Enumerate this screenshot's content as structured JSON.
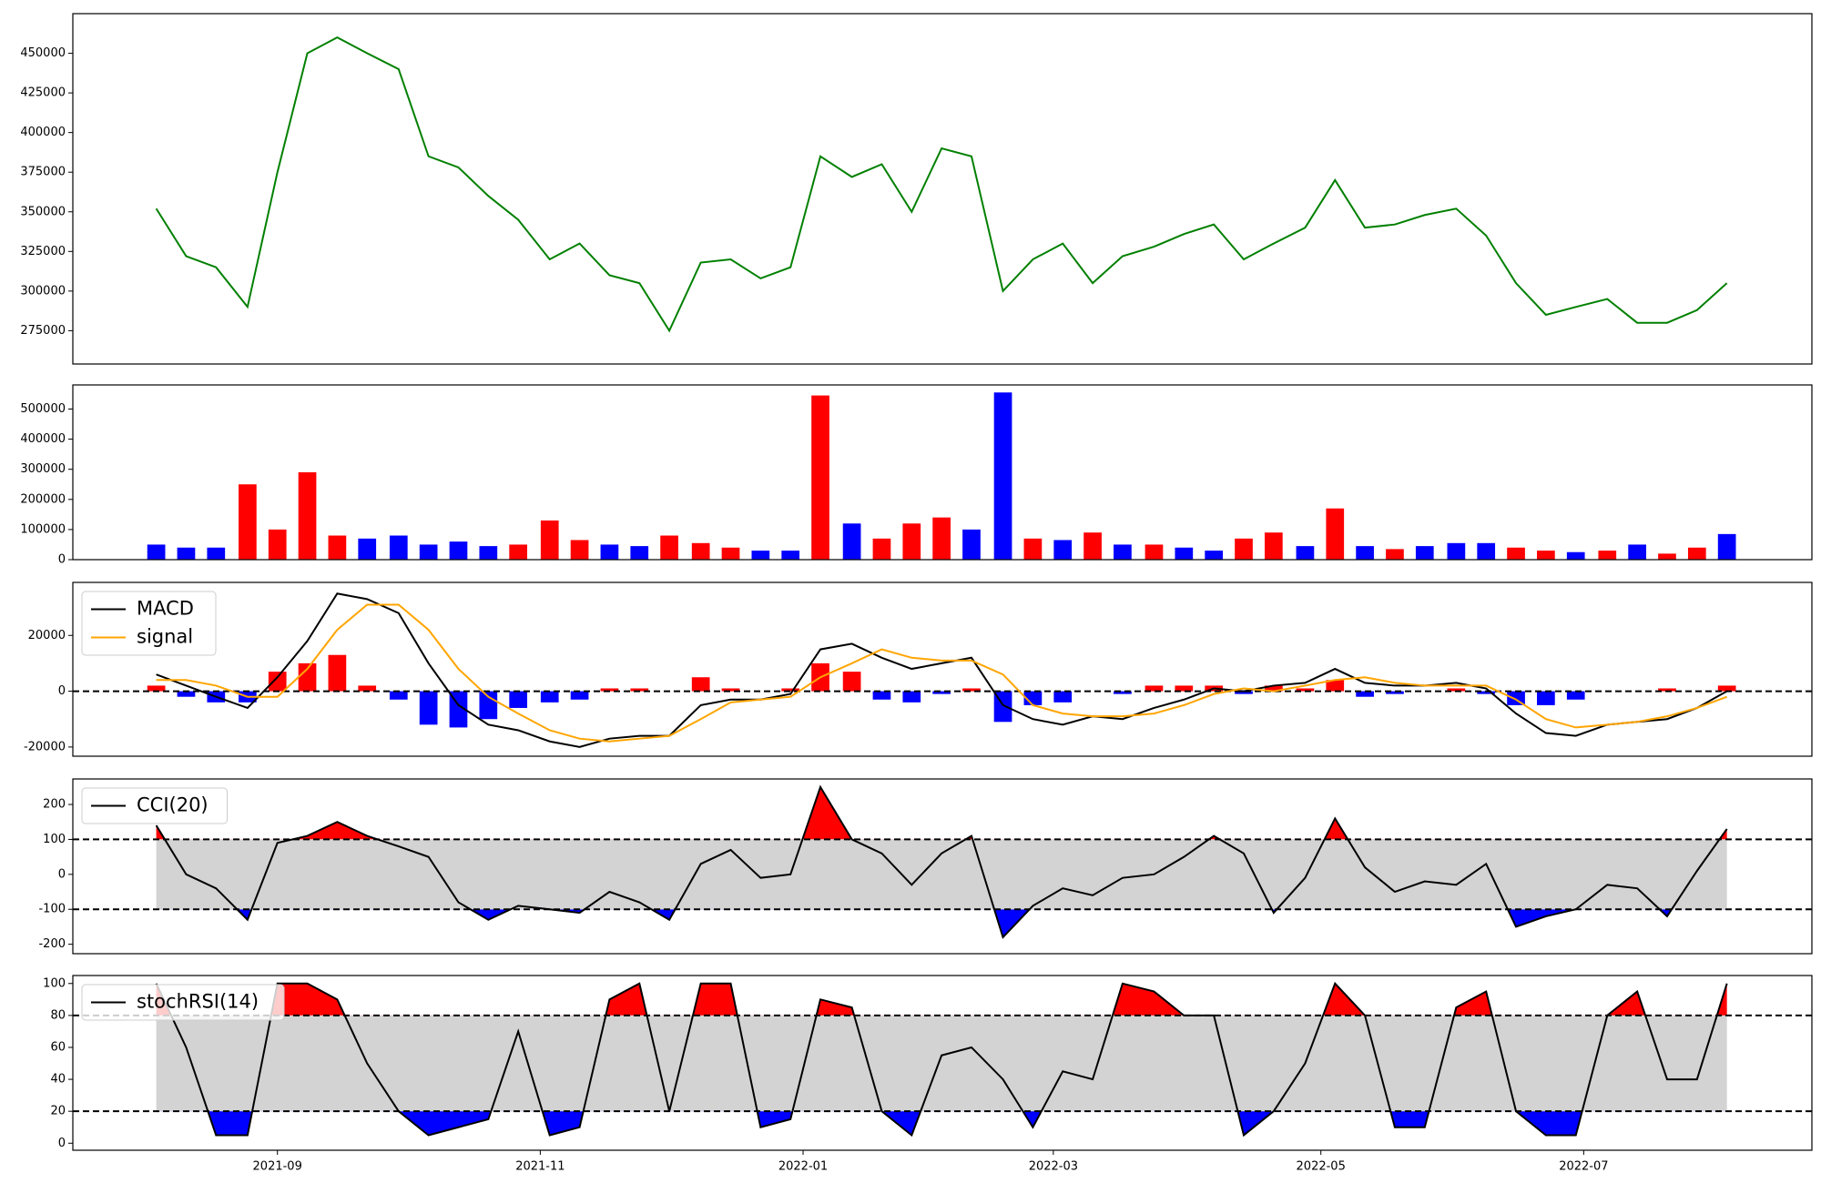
{
  "chart_data": [
    {
      "type": "line",
      "x": [
        2021.589,
        2021.608,
        2021.627,
        2021.647,
        2021.666,
        2021.685,
        2021.704,
        2021.723,
        2021.743,
        2021.762,
        2021.781,
        2021.8,
        2021.819,
        2021.839,
        2021.858,
        2021.877,
        2021.896,
        2021.915,
        2021.935,
        2021.954,
        2021.973,
        2021.992,
        2022.011,
        2022.031,
        2022.05,
        2022.069,
        2022.088,
        2022.107,
        2022.127,
        2022.146,
        2022.165,
        2022.184,
        2022.203,
        2022.223,
        2022.242,
        2022.261,
        2022.28,
        2022.299,
        2022.319,
        2022.338,
        2022.357,
        2022.376,
        2022.395,
        2022.415,
        2022.434,
        2022.453,
        2022.472,
        2022.491,
        2022.511,
        2022.53,
        2022.549,
        2022.568,
        2022.587
      ],
      "series": [
        {
          "color": "#008000",
          "values": [
            352000,
            322000,
            315000,
            290000,
            375000,
            450000,
            460000,
            450000,
            440000,
            385000,
            378000,
            360000,
            345000,
            320000,
            330000,
            310000,
            305000,
            275000,
            318000,
            320000,
            308000,
            315000,
            385000,
            372000,
            380000,
            350000,
            390000,
            385000,
            300000,
            320000,
            330000,
            305000,
            322000,
            328000,
            336000,
            342000,
            320000,
            330000,
            340000,
            370000,
            340000,
            342000,
            348000,
            352000,
            335000,
            305000,
            285000,
            290000,
            295000,
            280000,
            280000,
            288000,
            305000
          ]
        }
      ],
      "xlim": [
        2021.536,
        2022.641
      ],
      "ylim": [
        254000,
        475000
      ],
      "yticks": [
        275000,
        300000,
        325000,
        350000,
        375000,
        400000,
        425000,
        450000
      ]
    },
    {
      "type": "bar",
      "x": [
        2021.589,
        2021.608,
        2021.627,
        2021.647,
        2021.666,
        2021.685,
        2021.704,
        2021.723,
        2021.743,
        2021.762,
        2021.781,
        2021.8,
        2021.819,
        2021.839,
        2021.858,
        2021.877,
        2021.896,
        2021.915,
        2021.935,
        2021.954,
        2021.973,
        2021.992,
        2022.011,
        2022.031,
        2022.05,
        2022.069,
        2022.088,
        2022.107,
        2022.127,
        2022.146,
        2022.165,
        2022.184,
        2022.203,
        2022.223,
        2022.242,
        2022.261,
        2022.28,
        2022.299,
        2022.319,
        2022.338,
        2022.357,
        2022.376,
        2022.395,
        2022.415,
        2022.434,
        2022.453,
        2022.472,
        2022.491,
        2022.511,
        2022.53,
        2022.549,
        2022.568,
        2022.587
      ],
      "values": [
        50000,
        40000,
        40000,
        250000,
        100000,
        290000,
        80000,
        70000,
        80000,
        50000,
        60000,
        45000,
        50000,
        130000,
        65000,
        50000,
        45000,
        80000,
        55000,
        40000,
        30000,
        30000,
        545000,
        120000,
        70000,
        120000,
        140000,
        100000,
        555000,
        70000,
        65000,
        90000,
        50000,
        50000,
        40000,
        30000,
        70000,
        90000,
        45000,
        170000,
        45000,
        35000,
        45000,
        55000,
        55000,
        40000,
        30000,
        25000,
        30000,
        50000,
        20000,
        40000,
        85000
      ],
      "colors": [
        "blue",
        "blue",
        "blue",
        "red",
        "red",
        "red",
        "red",
        "blue",
        "blue",
        "blue",
        "blue",
        "blue",
        "red",
        "red",
        "red",
        "blue",
        "blue",
        "red",
        "red",
        "red",
        "blue",
        "blue",
        "red",
        "blue",
        "red",
        "red",
        "red",
        "blue",
        "blue",
        "red",
        "blue",
        "red",
        "blue",
        "red",
        "blue",
        "blue",
        "red",
        "red",
        "blue",
        "red",
        "blue",
        "red",
        "blue",
        "blue",
        "blue",
        "red",
        "red",
        "blue",
        "red",
        "blue",
        "red",
        "red",
        "blue"
      ],
      "xlim": [
        2021.536,
        2022.641
      ],
      "ylim": [
        0,
        580000
      ],
      "yticks": [
        0,
        100000,
        200000,
        300000,
        400000,
        500000
      ]
    },
    {
      "type": "line",
      "x": [
        2021.589,
        2021.608,
        2021.627,
        2021.647,
        2021.666,
        2021.685,
        2021.704,
        2021.723,
        2021.743,
        2021.762,
        2021.781,
        2021.8,
        2021.819,
        2021.839,
        2021.858,
        2021.877,
        2021.896,
        2021.915,
        2021.935,
        2021.954,
        2021.973,
        2021.992,
        2022.011,
        2022.031,
        2022.05,
        2022.069,
        2022.088,
        2022.107,
        2022.127,
        2022.146,
        2022.165,
        2022.184,
        2022.203,
        2022.223,
        2022.242,
        2022.261,
        2022.28,
        2022.299,
        2022.319,
        2022.338,
        2022.357,
        2022.376,
        2022.395,
        2022.415,
        2022.434,
        2022.453,
        2022.472,
        2022.491,
        2022.511,
        2022.53,
        2022.549,
        2022.568,
        2022.587
      ],
      "series": [
        {
          "name": "MACD",
          "color": "#000000",
          "values": [
            6000,
            2000,
            -2000,
            -6000,
            5000,
            18000,
            35000,
            33000,
            28000,
            10000,
            -5000,
            -12000,
            -14000,
            -18000,
            -20000,
            -17000,
            -16000,
            -16000,
            -5000,
            -3000,
            -3000,
            -1000,
            15000,
            17000,
            12000,
            8000,
            10000,
            12000,
            -5000,
            -10000,
            -12000,
            -9000,
            -10000,
            -6000,
            -3000,
            1000,
            0,
            2000,
            3000,
            8000,
            3000,
            2000,
            2000,
            3000,
            1000,
            -8000,
            -15000,
            -16000,
            -12000,
            -11000,
            -10000,
            -6000,
            0
          ]
        },
        {
          "name": "signal",
          "color": "#ffa500",
          "values": [
            4000,
            4000,
            2000,
            -2000,
            -2000,
            8000,
            22000,
            31000,
            31000,
            22000,
            8000,
            -2000,
            -8000,
            -14000,
            -17000,
            -18000,
            -17000,
            -16000,
            -10000,
            -4000,
            -3000,
            -2000,
            5000,
            10000,
            15000,
            12000,
            11000,
            11000,
            6000,
            -5000,
            -8000,
            -9000,
            -9000,
            -8000,
            -5000,
            -1000,
            1000,
            0,
            2000,
            4000,
            5000,
            3000,
            2000,
            2000,
            2000,
            -3000,
            -10000,
            -13000,
            -12000,
            -11000,
            -9000,
            -6000,
            -2000
          ]
        }
      ],
      "histogram": {
        "positive_color": "red",
        "negative_color": "blue",
        "values": [
          2000,
          -2000,
          -4000,
          -4000,
          7000,
          10000,
          13000,
          2000,
          -3000,
          -12000,
          -13000,
          -10000,
          -6000,
          -4000,
          -3000,
          1000,
          1000,
          0,
          5000,
          1000,
          0,
          1000,
          10000,
          7000,
          -3000,
          -4000,
          -1000,
          1000,
          -11000,
          -5000,
          -4000,
          0,
          -1000,
          2000,
          2000,
          2000,
          -1000,
          2000,
          1000,
          4000,
          -2000,
          -1000,
          0,
          1000,
          -1000,
          -5000,
          -5000,
          -3000,
          0,
          0,
          1000,
          0,
          2000
        ]
      },
      "reference_lines": [
        0
      ],
      "legend": "upper left",
      "xlim": [
        2021.536,
        2022.641
      ],
      "ylim": [
        -23300,
        39000
      ],
      "yticks": [
        -20000,
        0,
        20000
      ]
    },
    {
      "type": "line",
      "x": [
        2021.589,
        2021.608,
        2021.627,
        2021.647,
        2021.666,
        2021.685,
        2021.704,
        2021.723,
        2021.743,
        2021.762,
        2021.781,
        2021.8,
        2021.819,
        2021.839,
        2021.858,
        2021.877,
        2021.896,
        2021.915,
        2021.935,
        2021.954,
        2021.973,
        2021.992,
        2022.011,
        2022.031,
        2022.05,
        2022.069,
        2022.088,
        2022.107,
        2022.127,
        2022.146,
        2022.165,
        2022.184,
        2022.203,
        2022.223,
        2022.242,
        2022.261,
        2022.28,
        2022.299,
        2022.319,
        2022.338,
        2022.357,
        2022.376,
        2022.395,
        2022.415,
        2022.434,
        2022.453,
        2022.472,
        2022.491,
        2022.511,
        2022.53,
        2022.549,
        2022.568,
        2022.587
      ],
      "series": [
        {
          "name": "CCI(20)",
          "color": "#000000",
          "values": [
            140,
            0,
            -40,
            -130,
            90,
            110,
            150,
            110,
            80,
            50,
            -80,
            -130,
            -90,
            -100,
            -110,
            -50,
            -80,
            -130,
            30,
            70,
            -10,
            0,
            250,
            100,
            60,
            -30,
            60,
            110,
            -180,
            -90,
            -40,
            -60,
            -10,
            0,
            50,
            110,
            60,
            -110,
            -10,
            160,
            20,
            -50,
            -20,
            -30,
            30,
            -150,
            -120,
            -100,
            -30,
            -40,
            -120,
            10,
            130
          ]
        }
      ],
      "reference_lines": [
        -100,
        100
      ],
      "band_color": "#d3d3d3",
      "above_color": "red",
      "below_color": "blue",
      "legend": "upper left",
      "xlim": [
        2021.536,
        2022.641
      ],
      "ylim": [
        -227,
        273
      ],
      "yticks": [
        -200,
        -100,
        0,
        100,
        200
      ]
    },
    {
      "type": "line",
      "x": [
        2021.589,
        2021.608,
        2021.627,
        2021.647,
        2021.666,
        2021.685,
        2021.704,
        2021.723,
        2021.743,
        2021.762,
        2021.781,
        2021.8,
        2021.819,
        2021.839,
        2021.858,
        2021.877,
        2021.896,
        2021.915,
        2021.935,
        2021.954,
        2021.973,
        2021.992,
        2022.011,
        2022.031,
        2022.05,
        2022.069,
        2022.088,
        2022.107,
        2022.127,
        2022.146,
        2022.165,
        2022.184,
        2022.203,
        2022.223,
        2022.242,
        2022.261,
        2022.28,
        2022.299,
        2022.319,
        2022.338,
        2022.357,
        2022.376,
        2022.395,
        2022.415,
        2022.434,
        2022.453,
        2022.472,
        2022.491,
        2022.511,
        2022.53,
        2022.549,
        2022.568,
        2022.587
      ],
      "series": [
        {
          "name": "stochRSI(14)",
          "color": "#000000",
          "values": [
            100,
            60,
            5,
            5,
            100,
            100,
            90,
            50,
            20,
            5,
            10,
            15,
            70,
            5,
            10,
            90,
            100,
            20,
            100,
            100,
            10,
            15,
            90,
            85,
            20,
            5,
            55,
            60,
            40,
            10,
            45,
            40,
            100,
            95,
            80,
            80,
            5,
            20,
            50,
            100,
            80,
            10,
            10,
            85,
            95,
            20,
            5,
            5,
            80,
            95,
            40,
            40,
            100
          ]
        }
      ],
      "reference_lines": [
        20,
        80
      ],
      "band_color": "#d3d3d3",
      "above_color": "red",
      "below_color": "blue",
      "legend": "upper left",
      "xlim": [
        2021.536,
        2022.641
      ],
      "ylim": [
        -4.4,
        105
      ],
      "yticks": [
        0,
        20,
        40,
        60,
        80,
        100
      ],
      "xticks": [
        {
          "value": 2021.666,
          "label": "2021-09"
        },
        {
          "value": 2021.833,
          "label": "2021-11"
        },
        {
          "value": 2022.0,
          "label": "2022-01"
        },
        {
          "value": 2022.159,
          "label": "2022-03"
        },
        {
          "value": 2022.329,
          "label": "2022-05"
        },
        {
          "value": 2022.496,
          "label": "2022-07"
        }
      ]
    }
  ]
}
